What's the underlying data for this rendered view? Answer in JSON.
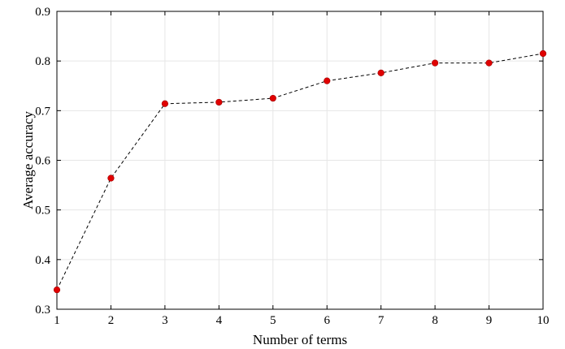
{
  "chart_data": {
    "type": "line",
    "title": "",
    "xlabel": "Number of terms",
    "ylabel": "Average accuracy",
    "x": [
      1,
      2,
      3,
      4,
      5,
      6,
      7,
      8,
      9,
      10
    ],
    "series": [
      {
        "values": [
          0.339,
          0.564,
          0.714,
          0.717,
          0.725,
          0.76,
          0.776,
          0.796,
          0.796,
          0.815
        ],
        "line_style": "dashed",
        "line_color": "#000000",
        "marker": "circle",
        "marker_color": "#e00000"
      }
    ],
    "xlim": [
      1,
      10
    ],
    "ylim": [
      0.3,
      0.9
    ],
    "xticks": [
      "1",
      "2",
      "3",
      "4",
      "5",
      "6",
      "7",
      "8",
      "9",
      "10"
    ],
    "yticks": [
      "0.3",
      "0.4",
      "0.5",
      "0.6",
      "0.7",
      "0.8",
      "0.9"
    ],
    "grid": true,
    "grid_color": "#e6e6e6"
  }
}
